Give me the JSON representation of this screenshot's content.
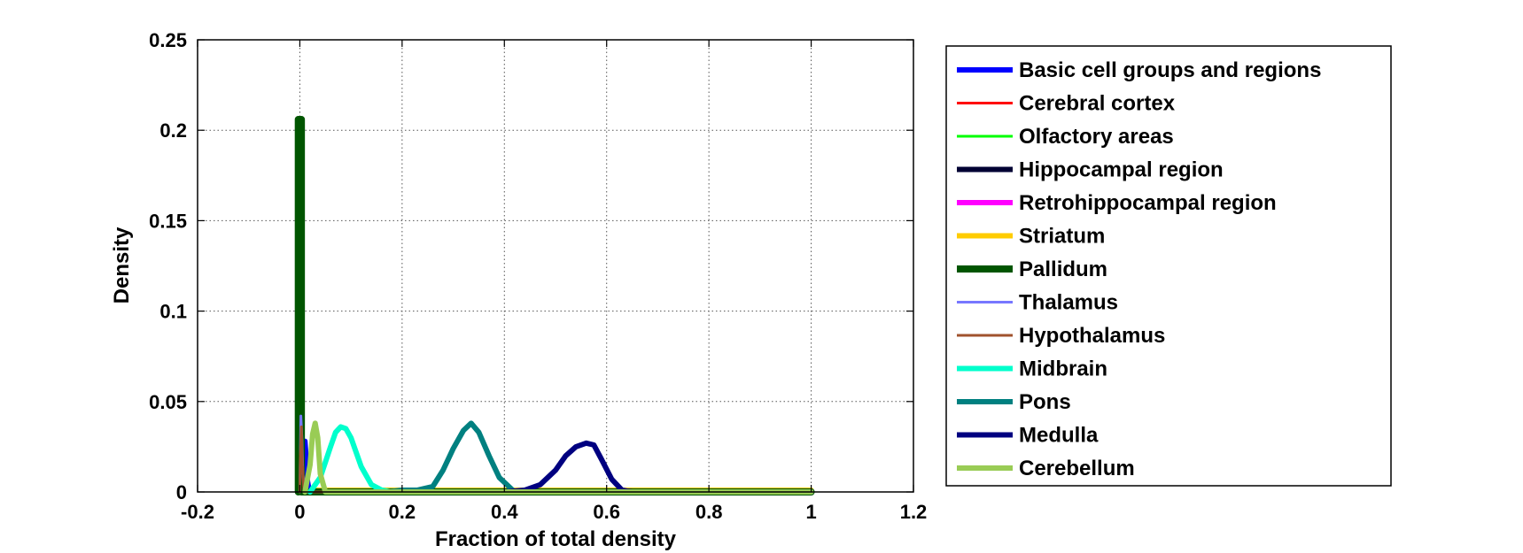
{
  "chart_data": {
    "type": "line",
    "title": "",
    "xlabel": "Fraction of total density",
    "ylabel": "Density",
    "xlim": [
      -0.2,
      1.2
    ],
    "ylim": [
      0,
      0.25
    ],
    "xticks": [
      -0.2,
      0,
      0.2,
      0.4,
      0.6,
      0.8,
      1,
      1.2
    ],
    "xtick_labels": [
      "-0.2",
      "0",
      "0.2",
      "0.4",
      "0.6",
      "0.8",
      "1",
      "1.2"
    ],
    "yticks": [
      0,
      0.05,
      0.1,
      0.15,
      0.2,
      0.25
    ],
    "ytick_labels": [
      "0",
      "0.05",
      "0.1",
      "0.15",
      "0.2",
      "0.25"
    ],
    "grid": true,
    "legend_position": "outside-right",
    "series": [
      {
        "name": "Basic cell groups and regions",
        "color": "#0000ff",
        "width": 6,
        "x": [
          0,
          0.005,
          0.008,
          0.01,
          0.012,
          0.015,
          0.018,
          0.02,
          1.0
        ],
        "y": [
          0,
          0.005,
          0.02,
          0.028,
          0.02,
          0.006,
          0.001,
          0,
          0
        ]
      },
      {
        "name": "Cerebral cortex",
        "color": "#ff0000",
        "width": 3,
        "x": [
          0,
          0.002,
          0.004,
          0.006,
          0.01,
          1.0
        ],
        "y": [
          0,
          0.01,
          0.02,
          0.008,
          0,
          0
        ]
      },
      {
        "name": "Olfactory areas",
        "color": "#00ff00",
        "width": 3,
        "x": [
          0,
          0.002,
          0.004,
          0.006,
          0.01,
          1.0
        ],
        "y": [
          0,
          0.006,
          0.012,
          0.005,
          0,
          0
        ]
      },
      {
        "name": "Hippocampal region",
        "color": "#000033",
        "width": 6,
        "x": [
          0,
          0.003,
          0.006,
          0.01,
          1.0
        ],
        "y": [
          0,
          0.008,
          0.004,
          0,
          0
        ]
      },
      {
        "name": "Retrohippocampal region",
        "color": "#ff00ff",
        "width": 6,
        "x": [
          0,
          0.003,
          0.006,
          0.01,
          1.0
        ],
        "y": [
          0,
          0.01,
          0.005,
          0,
          0
        ]
      },
      {
        "name": "Striatum",
        "color": "#ffcc00",
        "width": 6,
        "x": [
          0,
          0.002,
          0.004,
          1.0
        ],
        "y": [
          0,
          0.002,
          0.001,
          0.001
        ]
      },
      {
        "name": "Pallidum",
        "color": "#005500",
        "width": 8,
        "x": [
          -0.003,
          -0.003,
          0.003,
          0.003,
          1.0
        ],
        "y": [
          0,
          0.206,
          0.206,
          0,
          0
        ]
      },
      {
        "name": "Thalamus",
        "color": "#7777ff",
        "width": 3,
        "x": [
          0,
          0.001,
          0.002,
          0.004,
          0.006,
          0.01,
          1.0
        ],
        "y": [
          0,
          0.02,
          0.042,
          0.03,
          0.01,
          0,
          0
        ]
      },
      {
        "name": "Hypothalamus",
        "color": "#a0522d",
        "width": 3,
        "x": [
          0,
          0.001,
          0.003,
          0.005,
          0.008,
          1.0
        ],
        "y": [
          0,
          0.02,
          0.036,
          0.015,
          0,
          0
        ]
      },
      {
        "name": "Midbrain",
        "color": "#00ffcc",
        "width": 6,
        "x": [
          0.02,
          0.04,
          0.06,
          0.07,
          0.08,
          0.09,
          0.1,
          0.11,
          0.12,
          0.14,
          0.16,
          0.18,
          1.0
        ],
        "y": [
          0,
          0.008,
          0.025,
          0.033,
          0.036,
          0.035,
          0.03,
          0.022,
          0.014,
          0.004,
          0.001,
          0,
          0
        ]
      },
      {
        "name": "Pons",
        "color": "#008080",
        "width": 6,
        "x": [
          0.17,
          0.2,
          0.23,
          0.26,
          0.28,
          0.3,
          0.32,
          0.335,
          0.35,
          0.37,
          0.39,
          0.42,
          1.0
        ],
        "y": [
          0,
          0.001,
          0.001,
          0.003,
          0.012,
          0.024,
          0.034,
          0.038,
          0.033,
          0.02,
          0.008,
          0,
          0
        ]
      },
      {
        "name": "Medulla",
        "color": "#000080",
        "width": 6,
        "x": [
          0.4,
          0.44,
          0.47,
          0.5,
          0.52,
          0.54,
          0.56,
          0.575,
          0.59,
          0.61,
          0.63,
          0.65,
          1.0
        ],
        "y": [
          0,
          0.001,
          0.004,
          0.012,
          0.02,
          0.025,
          0.027,
          0.026,
          0.018,
          0.007,
          0.001,
          0,
          0
        ]
      },
      {
        "name": "Cerebellum",
        "color": "#99cc55",
        "width": 6,
        "x": [
          0.01,
          0.02,
          0.025,
          0.03,
          0.035,
          0.04,
          0.05,
          1.0
        ],
        "y": [
          0,
          0.015,
          0.032,
          0.038,
          0.03,
          0.01,
          0,
          0
        ]
      }
    ]
  }
}
